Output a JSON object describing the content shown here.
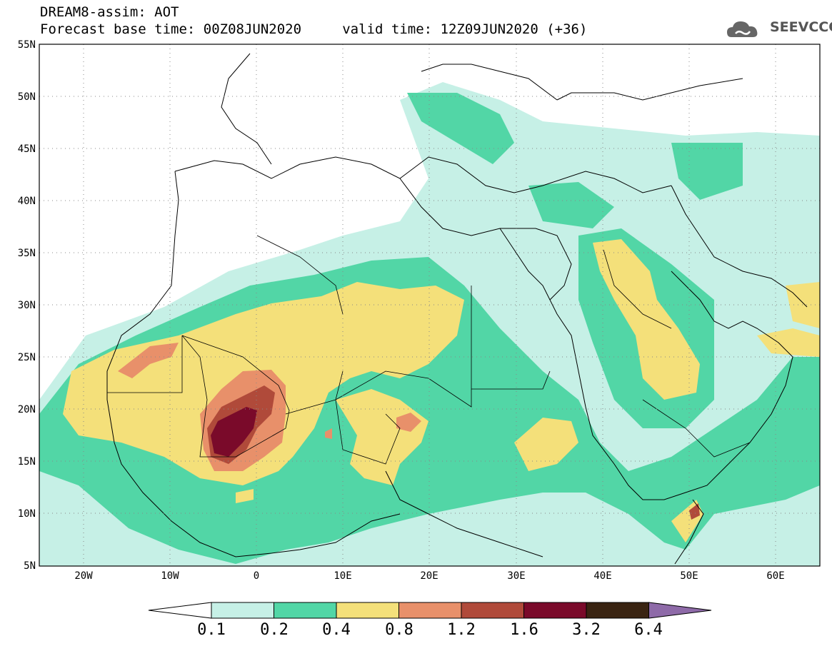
{
  "title": {
    "line1": "DREAM8-assim: AOT",
    "line2": "Forecast base time: 00Z08JUN2020     valid time: 12Z09JUN2020 (+36)"
  },
  "logo": {
    "text": "SEEVCCC",
    "icon": "cloud-logo-icon"
  },
  "axes": {
    "lat_labels": [
      "55N",
      "50N",
      "45N",
      "40N",
      "35N",
      "30N",
      "25N",
      "20N",
      "15N",
      "10N",
      "5N"
    ],
    "lon_labels": [
      "20W",
      "10W",
      "0",
      "10E",
      "20E",
      "30E",
      "40E",
      "50E",
      "60E"
    ]
  },
  "colorbar": {
    "labels": [
      "0.1",
      "0.2",
      "0.4",
      "0.8",
      "1.2",
      "1.6",
      "3.2",
      "6.4"
    ],
    "colors": [
      "#ffffff",
      "#c6f0e6",
      "#52d6a6",
      "#f4e07a",
      "#e8906a",
      "#b04a3a",
      "#7a0a2a",
      "#3a2412",
      "#8e6aa8"
    ]
  },
  "map_colors": {
    "ocean": "#ffffff",
    "lvl1": "#c6f0e6",
    "lvl2": "#52d6a6",
    "lvl3": "#f4e07a",
    "lvl4": "#e8906a",
    "lvl5": "#b04a3a",
    "lvl6": "#7a0a2a"
  }
}
